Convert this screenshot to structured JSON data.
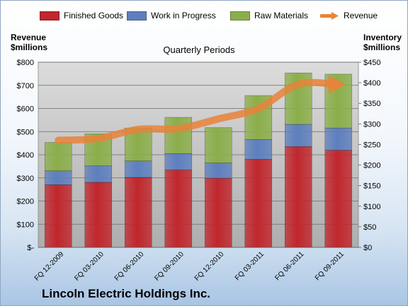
{
  "company": "Lincoln Electric Holdings Inc.",
  "chart_data": {
    "type": "bar",
    "stacked": true,
    "title": "Quarterly Periods",
    "ylabel_left": "Revenue $millions",
    "ylabel_right": "Inventory $millions",
    "categories": [
      "FQ 12-2009",
      "FQ 03-2010",
      "FQ 06-2010",
      "FQ 09-2010",
      "FQ 12-2010",
      "FQ 03-2011",
      "FQ 06-2011",
      "FQ 09-2011"
    ],
    "series": [
      {
        "name": "Finished Goods",
        "axis": "right",
        "color": "#c0272d",
        "values": [
          152,
          158,
          170,
          188,
          168,
          214,
          245,
          236
        ]
      },
      {
        "name": "Work in Progress",
        "axis": "right",
        "color": "#5d7fbd",
        "values": [
          34,
          40,
          40,
          40,
          37,
          48,
          54,
          54
        ]
      },
      {
        "name": "Raw Materials",
        "axis": "right",
        "color": "#8bae4a",
        "values": [
          69,
          78,
          80,
          88,
          86,
          107,
          125,
          131
        ]
      },
      {
        "name": "Revenue",
        "axis": "left",
        "type": "line",
        "color": "#e8833a",
        "values": [
          463,
          470,
          510,
          513,
          555,
          600,
          705,
          703
        ]
      }
    ],
    "left_axis": {
      "ticks": [
        "$-",
        "$100",
        "$200",
        "$300",
        "$400",
        "$500",
        "$600",
        "$700",
        "$800"
      ],
      "ylim": [
        0,
        800
      ]
    },
    "right_axis": {
      "ticks": [
        "$0",
        "$50",
        "$100",
        "$150",
        "$200",
        "$250",
        "$300",
        "$350",
        "$400",
        "$450"
      ],
      "ylim": [
        0,
        450
      ]
    },
    "legend": "top",
    "grid": true
  }
}
